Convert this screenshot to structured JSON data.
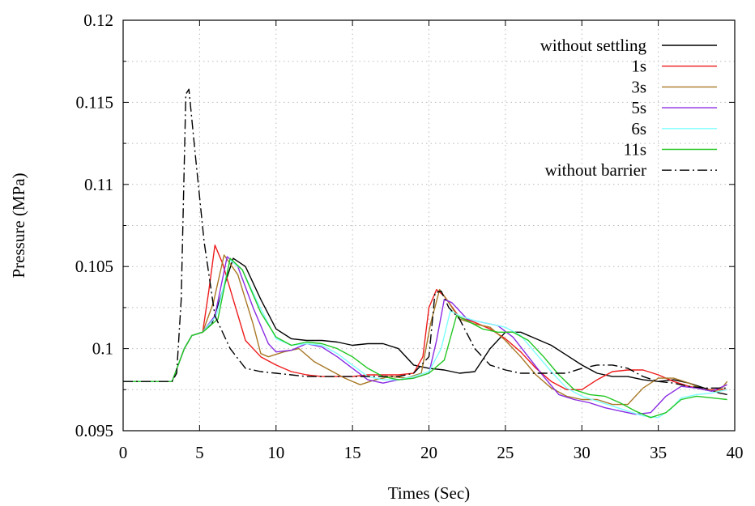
{
  "chart_data": {
    "type": "line",
    "title": "",
    "xlabel": "Times (Sec)",
    "ylabel": "Pressure (MPa)",
    "xlim": [
      0,
      40
    ],
    "ylim": [
      0.095,
      0.12
    ],
    "xticks": [
      0,
      5,
      10,
      15,
      20,
      25,
      30,
      35,
      40
    ],
    "xtick_labels": [
      "0",
      "5",
      "10",
      "15",
      "20",
      "25",
      "30",
      "35",
      "40"
    ],
    "yticks": [
      0.095,
      0.1,
      0.105,
      0.11,
      0.115,
      0.12
    ],
    "ytick_labels": [
      "0.095",
      "0.1",
      "0.105",
      "0.11",
      "0.115",
      "0.12"
    ],
    "grid": true,
    "legend_position": "top-right",
    "series": [
      {
        "name": "without settling",
        "color": "#000000",
        "dash": "solid",
        "points": [
          [
            0,
            0.098
          ],
          [
            3.2,
            0.098
          ],
          [
            4,
            0.1
          ],
          [
            4.5,
            0.1008
          ],
          [
            5.2,
            0.101
          ],
          [
            5.8,
            0.1015
          ],
          [
            6.5,
            0.1035
          ],
          [
            7.2,
            0.1055
          ],
          [
            8,
            0.105
          ],
          [
            9,
            0.103
          ],
          [
            10,
            0.1012
          ],
          [
            11,
            0.1006
          ],
          [
            12,
            0.1005
          ],
          [
            13,
            0.1005
          ],
          [
            14,
            0.1004
          ],
          [
            15,
            0.1002
          ],
          [
            16,
            0.1003
          ],
          [
            17,
            0.1003
          ],
          [
            18,
            0.1
          ],
          [
            19,
            0.099
          ],
          [
            20,
            0.0988
          ],
          [
            21,
            0.0987
          ],
          [
            22,
            0.0985
          ],
          [
            23,
            0.0986
          ],
          [
            24,
            0.1
          ],
          [
            25,
            0.101
          ],
          [
            26,
            0.101
          ],
          [
            27,
            0.1006
          ],
          [
            28,
            0.1002
          ],
          [
            29,
            0.0996
          ],
          [
            30,
            0.099
          ],
          [
            31,
            0.0985
          ],
          [
            32,
            0.0983
          ],
          [
            33,
            0.0983
          ],
          [
            34,
            0.0981
          ],
          [
            35,
            0.098
          ],
          [
            36,
            0.0981
          ],
          [
            37,
            0.0979
          ],
          [
            38,
            0.0976
          ],
          [
            39,
            0.0973
          ],
          [
            39.5,
            0.0972
          ]
        ]
      },
      {
        "name": "1s",
        "color": "#ee1c1c",
        "dash": "solid",
        "points": [
          [
            0,
            0.098
          ],
          [
            3.2,
            0.098
          ],
          [
            4,
            0.1
          ],
          [
            4.5,
            0.1008
          ],
          [
            5.2,
            0.101
          ],
          [
            5.6,
            0.1035
          ],
          [
            6,
            0.1063
          ],
          [
            6.5,
            0.1052
          ],
          [
            7.2,
            0.103
          ],
          [
            8,
            0.1005
          ],
          [
            9,
            0.0995
          ],
          [
            10,
            0.099
          ],
          [
            11,
            0.0986
          ],
          [
            12,
            0.0984
          ],
          [
            13,
            0.0983
          ],
          [
            14,
            0.0983
          ],
          [
            15,
            0.0983
          ],
          [
            16,
            0.0984
          ],
          [
            17,
            0.0984
          ],
          [
            18,
            0.0984
          ],
          [
            19,
            0.0985
          ],
          [
            19.6,
            0.0995
          ],
          [
            20,
            0.1025
          ],
          [
            20.5,
            0.1036
          ],
          [
            21,
            0.1032
          ],
          [
            22,
            0.1019
          ],
          [
            23,
            0.1016
          ],
          [
            24,
            0.1012
          ],
          [
            25,
            0.1006
          ],
          [
            26,
            0.0998
          ],
          [
            27,
            0.0988
          ],
          [
            28,
            0.098
          ],
          [
            29,
            0.0975
          ],
          [
            30,
            0.0975
          ],
          [
            31,
            0.0981
          ],
          [
            32,
            0.0986
          ],
          [
            33,
            0.0987
          ],
          [
            34,
            0.0987
          ],
          [
            35,
            0.0984
          ],
          [
            36,
            0.098
          ],
          [
            37,
            0.0977
          ],
          [
            38,
            0.0975
          ],
          [
            39,
            0.0975
          ],
          [
            39.5,
            0.0975
          ]
        ]
      },
      {
        "name": "3s",
        "color": "#a87826",
        "dash": "solid",
        "points": [
          [
            0,
            0.098
          ],
          [
            3.2,
            0.098
          ],
          [
            4,
            0.1
          ],
          [
            4.5,
            0.1008
          ],
          [
            5.2,
            0.101
          ],
          [
            5.9,
            0.1028
          ],
          [
            6.6,
            0.1057
          ],
          [
            7.5,
            0.1045
          ],
          [
            8.5,
            0.1015
          ],
          [
            9,
            0.0997
          ],
          [
            9.5,
            0.0995
          ],
          [
            10.5,
            0.0998
          ],
          [
            11.5,
            0.1
          ],
          [
            12.5,
            0.0992
          ],
          [
            13.5,
            0.0987
          ],
          [
            14.5,
            0.0982
          ],
          [
            15.5,
            0.0978
          ],
          [
            16.5,
            0.0981
          ],
          [
            17.5,
            0.0983
          ],
          [
            18.5,
            0.0982
          ],
          [
            19.5,
            0.0985
          ],
          [
            20.1,
            0.1015
          ],
          [
            20.7,
            0.1036
          ],
          [
            21.3,
            0.1028
          ],
          [
            22,
            0.1018
          ],
          [
            23,
            0.1015
          ],
          [
            24,
            0.1013
          ],
          [
            25,
            0.1005
          ],
          [
            26,
            0.0995
          ],
          [
            27,
            0.0984
          ],
          [
            28,
            0.0976
          ],
          [
            29,
            0.0971
          ],
          [
            30,
            0.0969
          ],
          [
            31,
            0.0969
          ],
          [
            32,
            0.0966
          ],
          [
            33,
            0.0966
          ],
          [
            34,
            0.0976
          ],
          [
            35,
            0.0982
          ],
          [
            36,
            0.0982
          ],
          [
            37,
            0.0979
          ],
          [
            38,
            0.0975
          ],
          [
            39,
            0.0974
          ],
          [
            39.5,
            0.098
          ]
        ]
      },
      {
        "name": "5s",
        "color": "#8a2be2",
        "dash": "solid",
        "points": [
          [
            0,
            0.098
          ],
          [
            3.2,
            0.098
          ],
          [
            4,
            0.1
          ],
          [
            4.5,
            0.1008
          ],
          [
            5.2,
            0.101
          ],
          [
            6,
            0.102
          ],
          [
            6.8,
            0.1056
          ],
          [
            7.5,
            0.105
          ],
          [
            8.5,
            0.1025
          ],
          [
            9.5,
            0.1003
          ],
          [
            10,
            0.0998
          ],
          [
            11,
            0.0999
          ],
          [
            12,
            0.1003
          ],
          [
            13,
            0.1001
          ],
          [
            14,
            0.0995
          ],
          [
            15,
            0.0988
          ],
          [
            16,
            0.0981
          ],
          [
            17,
            0.0979
          ],
          [
            18,
            0.0981
          ],
          [
            19,
            0.0982
          ],
          [
            20,
            0.0985
          ],
          [
            20.5,
            0.1005
          ],
          [
            21,
            0.103
          ],
          [
            21.5,
            0.1028
          ],
          [
            22.5,
            0.1018
          ],
          [
            23.5,
            0.1016
          ],
          [
            24.5,
            0.1014
          ],
          [
            25.5,
            0.1007
          ],
          [
            26.5,
            0.0995
          ],
          [
            27.5,
            0.0983
          ],
          [
            28.5,
            0.0972
          ],
          [
            29.5,
            0.0969
          ],
          [
            30.5,
            0.0967
          ],
          [
            31.5,
            0.0964
          ],
          [
            32.5,
            0.0962
          ],
          [
            33.5,
            0.096
          ],
          [
            34.5,
            0.0961
          ],
          [
            35.5,
            0.0971
          ],
          [
            36.5,
            0.0977
          ],
          [
            37.5,
            0.0976
          ],
          [
            38.5,
            0.0974
          ],
          [
            39.5,
            0.0978
          ]
        ]
      },
      {
        "name": "6s",
        "color": "#7fffff",
        "dash": "solid",
        "points": [
          [
            0,
            0.098
          ],
          [
            3.2,
            0.098
          ],
          [
            4,
            0.1
          ],
          [
            4.5,
            0.1008
          ],
          [
            5.2,
            0.101
          ],
          [
            6.1,
            0.102
          ],
          [
            7,
            0.1054
          ],
          [
            7.8,
            0.1048
          ],
          [
            8.8,
            0.1028
          ],
          [
            10,
            0.1006
          ],
          [
            11,
            0.1002
          ],
          [
            12,
            0.1003
          ],
          [
            13,
            0.1002
          ],
          [
            14,
            0.0997
          ],
          [
            15,
            0.099
          ],
          [
            16,
            0.0983
          ],
          [
            17,
            0.0981
          ],
          [
            18,
            0.0981
          ],
          [
            19,
            0.0983
          ],
          [
            20,
            0.0986
          ],
          [
            20.8,
            0.1
          ],
          [
            21.4,
            0.1023
          ],
          [
            22,
            0.102
          ],
          [
            23,
            0.1017
          ],
          [
            24,
            0.1015
          ],
          [
            25,
            0.1013
          ],
          [
            26,
            0.1008
          ],
          [
            27,
            0.0997
          ],
          [
            28,
            0.0986
          ],
          [
            29,
            0.0976
          ],
          [
            30,
            0.0971
          ],
          [
            31,
            0.0968
          ],
          [
            32,
            0.0965
          ],
          [
            33,
            0.0962
          ],
          [
            34,
            0.0959
          ],
          [
            35,
            0.0958
          ],
          [
            35.8,
            0.0963
          ],
          [
            36.5,
            0.097
          ],
          [
            37.5,
            0.0972
          ],
          [
            38.5,
            0.0973
          ],
          [
            39.5,
            0.0975
          ]
        ]
      },
      {
        "name": "11s",
        "color": "#22c722",
        "dash": "solid",
        "points": [
          [
            0,
            0.098
          ],
          [
            3.2,
            0.098
          ],
          [
            4,
            0.1
          ],
          [
            4.5,
            0.1008
          ],
          [
            5.2,
            0.101
          ],
          [
            6.2,
            0.1018
          ],
          [
            7,
            0.1055
          ],
          [
            7.8,
            0.1048
          ],
          [
            9,
            0.1022
          ],
          [
            10,
            0.1007
          ],
          [
            11,
            0.1002
          ],
          [
            12,
            0.1004
          ],
          [
            13,
            0.1003
          ],
          [
            14,
            0.1
          ],
          [
            15,
            0.0995
          ],
          [
            16,
            0.0988
          ],
          [
            17,
            0.0983
          ],
          [
            18,
            0.0981
          ],
          [
            19,
            0.0982
          ],
          [
            20,
            0.0985
          ],
          [
            21,
            0.0993
          ],
          [
            21.8,
            0.102
          ],
          [
            22.5,
            0.1017
          ],
          [
            23.5,
            0.1012
          ],
          [
            24.5,
            0.101
          ],
          [
            25.5,
            0.101
          ],
          [
            26.5,
            0.1005
          ],
          [
            27.5,
            0.0995
          ],
          [
            28.5,
            0.0984
          ],
          [
            29.5,
            0.0975
          ],
          [
            30.5,
            0.0972
          ],
          [
            31.5,
            0.0971
          ],
          [
            32.5,
            0.0967
          ],
          [
            33.5,
            0.0962
          ],
          [
            34.5,
            0.0958
          ],
          [
            35.5,
            0.0961
          ],
          [
            36.5,
            0.0969
          ],
          [
            37.5,
            0.0971
          ],
          [
            38.5,
            0.097
          ],
          [
            39.5,
            0.0969
          ]
        ]
      },
      {
        "name": "without barrier",
        "color": "#000000",
        "dash": "dashdot",
        "points": [
          [
            0,
            0.098
          ],
          [
            3.2,
            0.098
          ],
          [
            3.5,
            0.0985
          ],
          [
            3.8,
            0.103
          ],
          [
            4.1,
            0.1155
          ],
          [
            4.3,
            0.1158
          ],
          [
            4.7,
            0.112
          ],
          [
            5.3,
            0.1065
          ],
          [
            6,
            0.102
          ],
          [
            7,
            0.1
          ],
          [
            8,
            0.0988
          ],
          [
            9,
            0.0986
          ],
          [
            10,
            0.0985
          ],
          [
            11,
            0.0984
          ],
          [
            12,
            0.0983
          ],
          [
            13,
            0.0983
          ],
          [
            14,
            0.0983
          ],
          [
            15,
            0.0983
          ],
          [
            16,
            0.0983
          ],
          [
            17,
            0.0983
          ],
          [
            18,
            0.0983
          ],
          [
            19,
            0.0985
          ],
          [
            20,
            0.0995
          ],
          [
            20.4,
            0.1034
          ],
          [
            20.8,
            0.1035
          ],
          [
            21.3,
            0.1025
          ],
          [
            22,
            0.1018
          ],
          [
            23,
            0.1
          ],
          [
            24,
            0.099
          ],
          [
            25,
            0.0987
          ],
          [
            26,
            0.0985
          ],
          [
            27,
            0.0985
          ],
          [
            28,
            0.0985
          ],
          [
            29,
            0.0985
          ],
          [
            30,
            0.0988
          ],
          [
            31,
            0.099
          ],
          [
            32,
            0.099
          ],
          [
            33,
            0.0988
          ],
          [
            34,
            0.0983
          ],
          [
            35,
            0.098
          ],
          [
            36,
            0.0979
          ],
          [
            37,
            0.0977
          ],
          [
            38,
            0.0976
          ],
          [
            39,
            0.0976
          ],
          [
            39.5,
            0.0976
          ]
        ]
      }
    ]
  }
}
